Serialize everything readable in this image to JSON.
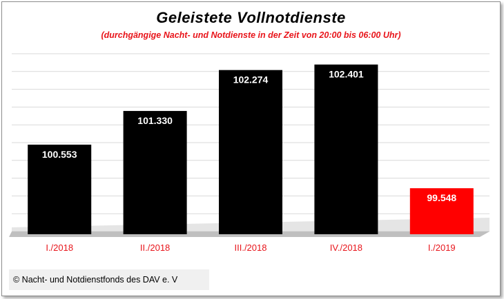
{
  "chart_data": {
    "type": "bar",
    "title": "Geleistete  Vollnotdienste",
    "subtitle": "(durchgängige Nacht- und Notdienste in der Zeit von 20:00 bis 06:00 Uhr)",
    "categories": [
      "I./2018",
      "II./2018",
      "III./2018",
      "IV./2018",
      "I./2019"
    ],
    "values": [
      100553,
      101330,
      102274,
      102401,
      99548
    ],
    "value_labels": [
      "100.553",
      "101.330",
      "102.274",
      "102.401",
      "99.548"
    ],
    "ylim": [
      98550,
      102650
    ],
    "grid": true,
    "colors": {
      "bars": [
        "#000000",
        "#000000",
        "#000000",
        "#000000",
        "#ff0000"
      ],
      "category_label": "#e8141a",
      "gridline": "#d9d9d9"
    }
  },
  "footer": {
    "text": "© Nacht- und Notdienstfonds des DAV e. V"
  }
}
